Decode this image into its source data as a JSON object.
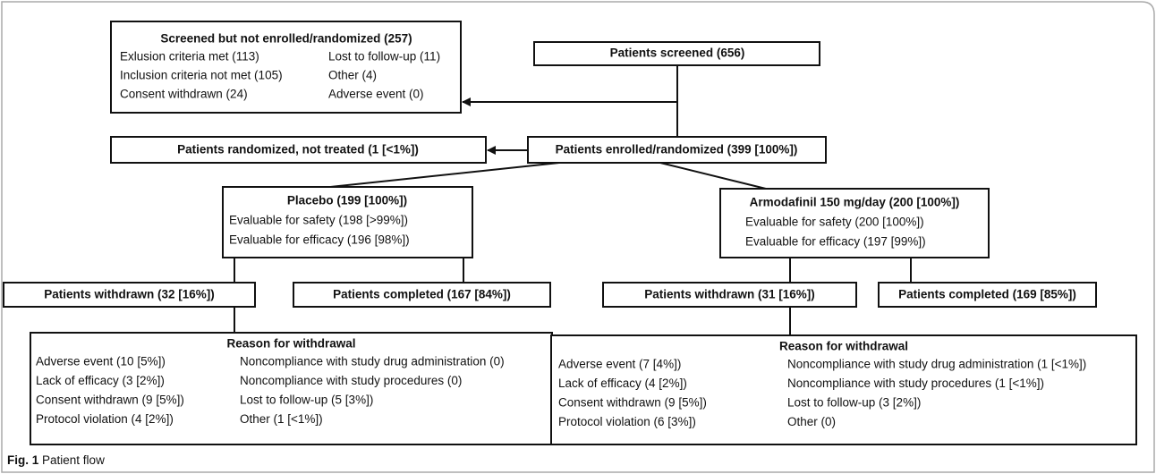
{
  "screened_out": {
    "title": "Screened but not enrolled/randomized (257)",
    "rows": [
      [
        "Exlusion criteria met (113)",
        "Lost to follow-up (11)"
      ],
      [
        "Inclusion criteria not met (105)",
        "Other (4)"
      ],
      [
        "Consent withdrawn (24)",
        "Adverse event (0)"
      ]
    ]
  },
  "screened": "Patients screened (656)",
  "not_treated": "Patients randomized, not treated (1 [<1%])",
  "enrolled": "Patients enrolled/randomized (399 [100%])",
  "arms": [
    {
      "title": "Placebo (199 [100%])",
      "details": [
        "Evaluable for safety (198 [>99%])",
        "Evaluable for efficacy (196 [98%])"
      ],
      "withdrawn": "Patients withdrawn (32 [16%])",
      "completed": "Patients completed (167 [84%])",
      "withdrawal": {
        "title": "Reason for withdrawal",
        "rows": [
          [
            "Adverse event (10 [5%])",
            "Noncompliance with study drug administration (0)"
          ],
          [
            "Lack of efficacy (3 [2%])",
            "Noncompliance with study procedures (0)"
          ],
          [
            "Consent withdrawn (9 [5%])",
            "Lost to follow-up (5 [3%])"
          ],
          [
            "Protocol violation (4 [2%])",
            "Other (1 [<1%])"
          ]
        ]
      }
    },
    {
      "title": "Armodafinil 150 mg/day (200 [100%])",
      "details": [
        "Evaluable for safety (200 [100%])",
        "Evaluable for efficacy (197 [99%])"
      ],
      "withdrawn": "Patients withdrawn (31 [16%])",
      "completed": "Patients completed (169 [85%])",
      "withdrawal": {
        "title": "Reason for withdrawal",
        "rows": [
          [
            "Adverse event (7 [4%])",
            "Noncompliance with study drug administration (1 [<1%])"
          ],
          [
            "Lack of efficacy (4 [2%])",
            "Noncompliance with study procedures (1 [<1%])"
          ],
          [
            "Consent withdrawn (9 [5%])",
            "Lost to follow-up (3 [2%])"
          ],
          [
            "Protocol violation (6 [3%])",
            "Other (0)"
          ]
        ]
      }
    }
  ],
  "caption": {
    "label": "Fig. 1",
    "text": "Patient flow"
  }
}
